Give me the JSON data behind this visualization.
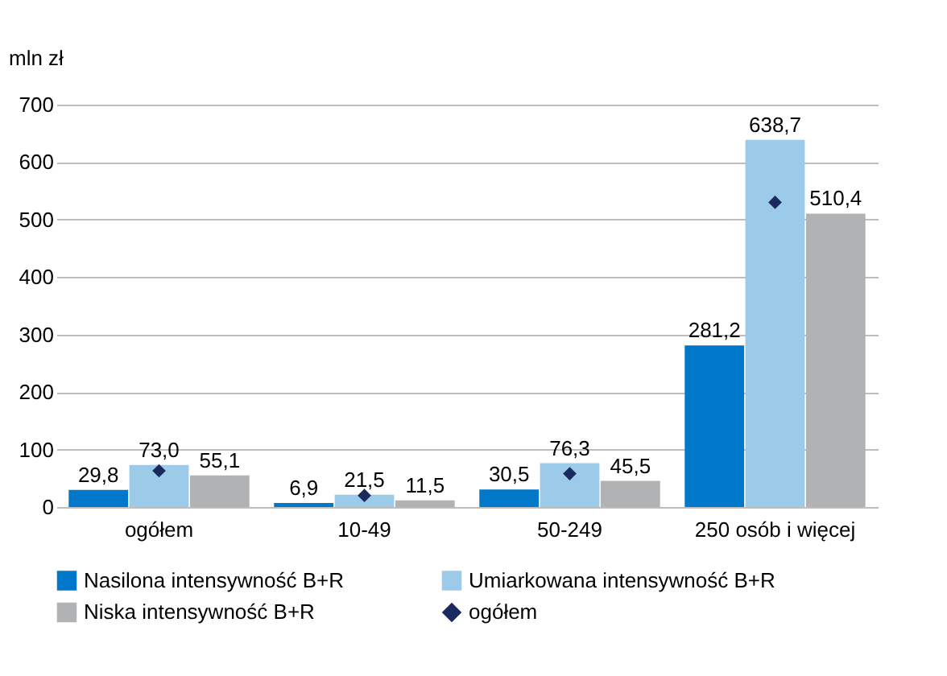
{
  "chart_data": {
    "type": "bar",
    "ylabel": "mln zł",
    "categories": [
      "ogółem",
      "10-49",
      "50-249",
      "250 osób  i więcej"
    ],
    "series": [
      {
        "name": "Nasilona intensywność B+R",
        "color": "#0077c8",
        "values": [
          29.8,
          6.9,
          30.5,
          281.2
        ],
        "value_labels": [
          "29,8",
          "6,9",
          "30,5",
          "281,2"
        ]
      },
      {
        "name": "Umiarkowana intensywność B+R",
        "color": "#9ccbea",
        "values": [
          73.0,
          21.5,
          76.3,
          638.7
        ],
        "value_labels": [
          "73,0",
          "21,5",
          "76,3",
          "638,7"
        ]
      },
      {
        "name": "Niska intensywność B+R",
        "color": "#b1b2b4",
        "values": [
          55.1,
          11.5,
          45.5,
          510.4
        ],
        "value_labels": [
          "55,1",
          "11,5",
          "45,5",
          "510,4"
        ]
      },
      {
        "name": "ogółem",
        "type": "scatter",
        "marker": "diamond",
        "color": "#1b2a5e",
        "values": [
          63,
          20,
          58,
          530
        ]
      }
    ],
    "ylim": [
      0,
      700
    ],
    "yticks": [
      0,
      100,
      200,
      300,
      400,
      500,
      600,
      700
    ],
    "grid": "y",
    "legend": "bottom"
  }
}
